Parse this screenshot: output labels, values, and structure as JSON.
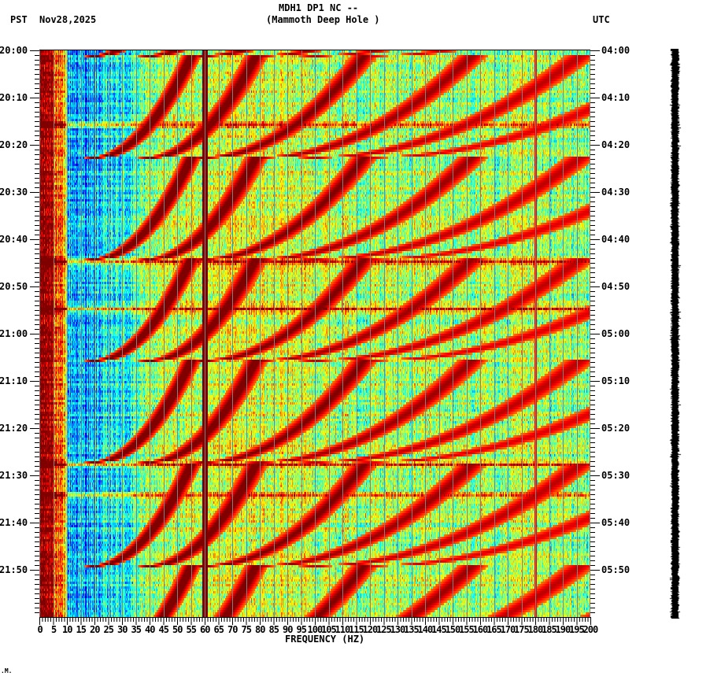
{
  "header": {
    "station_line": "MDH1 DP1 NC --",
    "location_line": "(Mammoth Deep Hole )",
    "left_tz": "PST",
    "date": "Nov28,2025",
    "right_tz": "UTC"
  },
  "footer_mark": ".M.",
  "chart_data": {
    "type": "heatmap",
    "title": "MDH1 DP1 NC -- (Mammoth Deep Hole )",
    "subtitle": "Nov28,2025",
    "xlabel": "FREQUENCY (HZ)",
    "ylabel_left": "PST",
    "ylabel_right": "UTC",
    "xlim": [
      0,
      200
    ],
    "x_major_step": 5,
    "x_minor_step": 1,
    "x_ticks": [
      0,
      5,
      10,
      15,
      20,
      25,
      30,
      35,
      40,
      45,
      50,
      55,
      60,
      65,
      70,
      75,
      80,
      85,
      90,
      95,
      100,
      105,
      110,
      115,
      120,
      125,
      130,
      135,
      140,
      145,
      150,
      155,
      160,
      165,
      170,
      175,
      180,
      185,
      190,
      195,
      200
    ],
    "y_range_minutes": 120,
    "y_minor_step_minutes": 1,
    "y_ticks_left": [
      "20:00",
      "20:10",
      "20:20",
      "20:30",
      "20:40",
      "20:50",
      "21:00",
      "21:10",
      "21:20",
      "21:30",
      "21:40",
      "21:50"
    ],
    "y_ticks_right": [
      "04:00",
      "04:10",
      "04:20",
      "04:30",
      "04:40",
      "04:50",
      "05:00",
      "05:10",
      "05:20",
      "05:30",
      "05:40",
      "05:50"
    ],
    "colormap": "jet",
    "grid": {
      "vertical_every_hz": 5,
      "color": "#808080"
    },
    "features": {
      "low_freq_saturation_hz": 5,
      "blue_band_hz": [
        10,
        35
      ],
      "powerline_hz": 60,
      "secondary_line_hz": 180,
      "chirp_cycle_end_minutes": [
        22.5,
        44,
        65.5,
        87,
        109
      ],
      "chirp_fundamental_end_hz": 20,
      "chirp_fundamental_start_hz": 55,
      "chirp_harmonics": [
        1,
        2,
        3,
        4,
        5,
        6
      ],
      "horizontal_bands_minutes": [
        15.5,
        44.5,
        54.5,
        87.5,
        94
      ]
    }
  },
  "seismogram": {
    "label": "trace"
  }
}
